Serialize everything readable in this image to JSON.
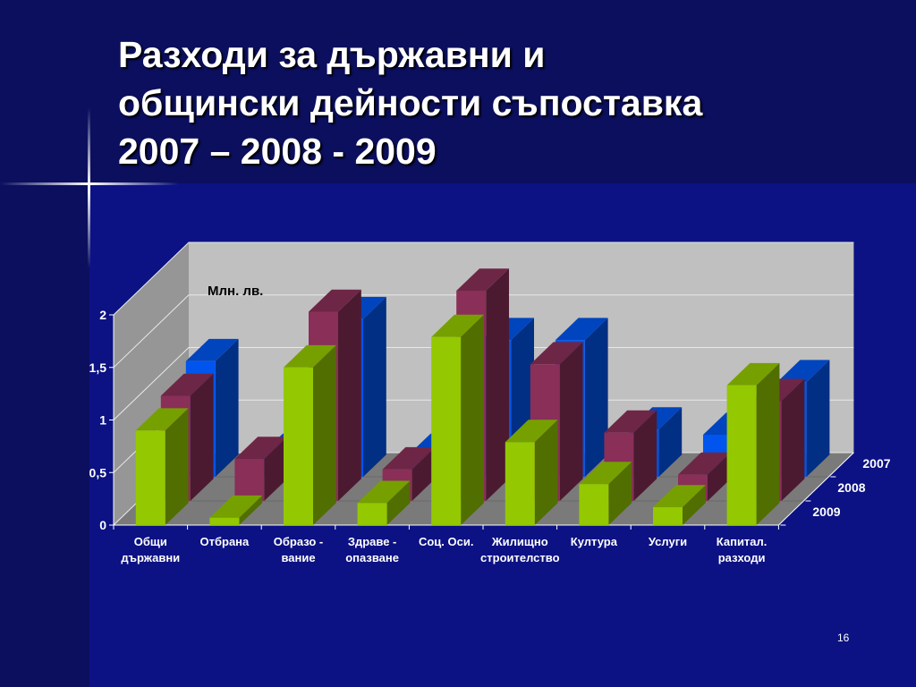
{
  "slide": {
    "title_lines": [
      "Разходи за държавни и",
      "общински дейности съпоставка",
      "2007 – 2008 - 2009"
    ],
    "slide_number": "16"
  },
  "chart_data": {
    "type": "bar",
    "unit_label": "Млн. лв.",
    "categories": [
      "Общи\nдържавни",
      "Отбрана",
      "Образо -\nвание",
      "Здраве -\nопазване",
      "Соц. Оси.",
      "Жилищно\nстроителство",
      "Култура",
      "Услуги",
      "Капитал.\nразходи"
    ],
    "y_ticks": [
      "0",
      "0,5",
      "1",
      "1,5",
      "2"
    ],
    "ylim": [
      0,
      2
    ],
    "grid": true,
    "series": [
      {
        "name": "2007",
        "color": "#0055ee",
        "values": [
          1.1,
          0.2,
          1.5,
          0.2,
          1.3,
          1.3,
          0.45,
          0.4,
          0.9
        ]
      },
      {
        "name": "2008",
        "color": "#8a2f58",
        "values": [
          1.0,
          0.4,
          1.8,
          0.3,
          2.0,
          1.3,
          0.65,
          0.25,
          0.95
        ]
      },
      {
        "name": "2009",
        "color": "#94c800",
        "values": [
          0.9,
          0.07,
          1.5,
          0.21,
          1.79,
          0.79,
          0.39,
          0.17,
          1.33
        ]
      }
    ]
  }
}
